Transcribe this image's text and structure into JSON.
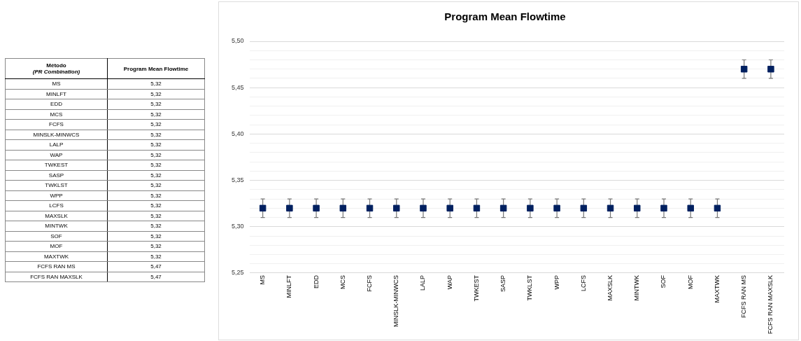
{
  "chart_data": [
    {
      "type": "other",
      "annotations": [
        "Método",
        "(PR Combination)",
        "Program Mean Flowtime",
        "MS",
        "5,32",
        "MINLFT",
        "5,32",
        "EDD",
        "5,32",
        "MCS",
        "5,32",
        "FCFS",
        "5,32",
        "MINSLK-MINWCS",
        "5,32",
        "LALP",
        "5,32",
        "WAP",
        "5,32",
        "TWKEST",
        "5,32",
        "SASP",
        "5,32",
        "TWKLST",
        "5,32",
        "WPP",
        "5,32",
        "LCFS",
        "5,32",
        "MAXSLK",
        "5,32",
        "MINTWK",
        "5,32",
        "SOF",
        "5,32",
        "MOF",
        "5,32",
        "MAXTWK",
        "5,32",
        "FCFS RAN MS",
        "5,47",
        "FCFS RAN MAXSLK",
        "5,47"
      ]
    },
    {
      "type": "scatter",
      "title": "Program Mean Flowtime",
      "categories": [
        "MS",
        "MINLFT",
        "EDD",
        "MCS",
        "FCFS",
        "MINSLK-MINWCS",
        "LALP",
        "WAP",
        "TWKEST",
        "SASP",
        "TWKLST",
        "WPP",
        "LCFS",
        "MAXSLK",
        "MINTWK",
        "SOF",
        "MOF",
        "MAXTWK",
        "FCFS RAN MS",
        "FCFS RAN MAXSLK"
      ],
      "series": [
        {
          "color": "#002060",
          "values": [
            5.32,
            5.32,
            5.32,
            5.32,
            5.32,
            5.32,
            5.32,
            5.32,
            5.32,
            5.32,
            5.32,
            5.32,
            5.32,
            5.32,
            5.32,
            5.32,
            5.32,
            5.32,
            5.47,
            5.47
          ],
          "errors": [
            0.01,
            0.01,
            0.01,
            0.01,
            0.01,
            0.01,
            0.01,
            0.01,
            0.01,
            0.01,
            0.01,
            0.01,
            0.01,
            0.01,
            0.01,
            0.01,
            0.01,
            0.01,
            0.01,
            0.01
          ]
        }
      ],
      "marker": "square",
      "grid": "y",
      "legend": false,
      "ylim": [
        5.25,
        5.5
      ],
      "yticks": [
        {
          "value": 5.25,
          "label": "5,25"
        },
        {
          "value": 5.26,
          "label": null
        },
        {
          "value": 5.27,
          "label": null
        },
        {
          "value": 5.28,
          "label": null
        },
        {
          "value": 5.29,
          "label": null
        },
        {
          "value": 5.3,
          "label": "5,30"
        },
        {
          "value": 5.31,
          "label": null
        },
        {
          "value": 5.32,
          "label": null
        },
        {
          "value": 5.33,
          "label": null
        },
        {
          "value": 5.34,
          "label": null
        },
        {
          "value": 5.35,
          "label": "5,35"
        },
        {
          "value": 5.36,
          "label": null
        },
        {
          "value": 5.37,
          "label": null
        },
        {
          "value": 5.38,
          "label": null
        },
        {
          "value": 5.39,
          "label": null
        },
        {
          "value": 5.4,
          "label": "5,40"
        },
        {
          "value": 5.41,
          "label": null
        },
        {
          "value": 5.42,
          "label": null
        },
        {
          "value": 5.43,
          "label": null
        },
        {
          "value": 5.44,
          "label": null
        },
        {
          "value": 5.45,
          "label": "5,45"
        },
        {
          "value": 5.46,
          "label": null
        },
        {
          "value": 5.47,
          "label": null
        },
        {
          "value": 5.48,
          "label": null
        },
        {
          "value": 5.49,
          "label": null
        },
        {
          "value": 5.5,
          "label": "5,50"
        }
      ]
    }
  ]
}
